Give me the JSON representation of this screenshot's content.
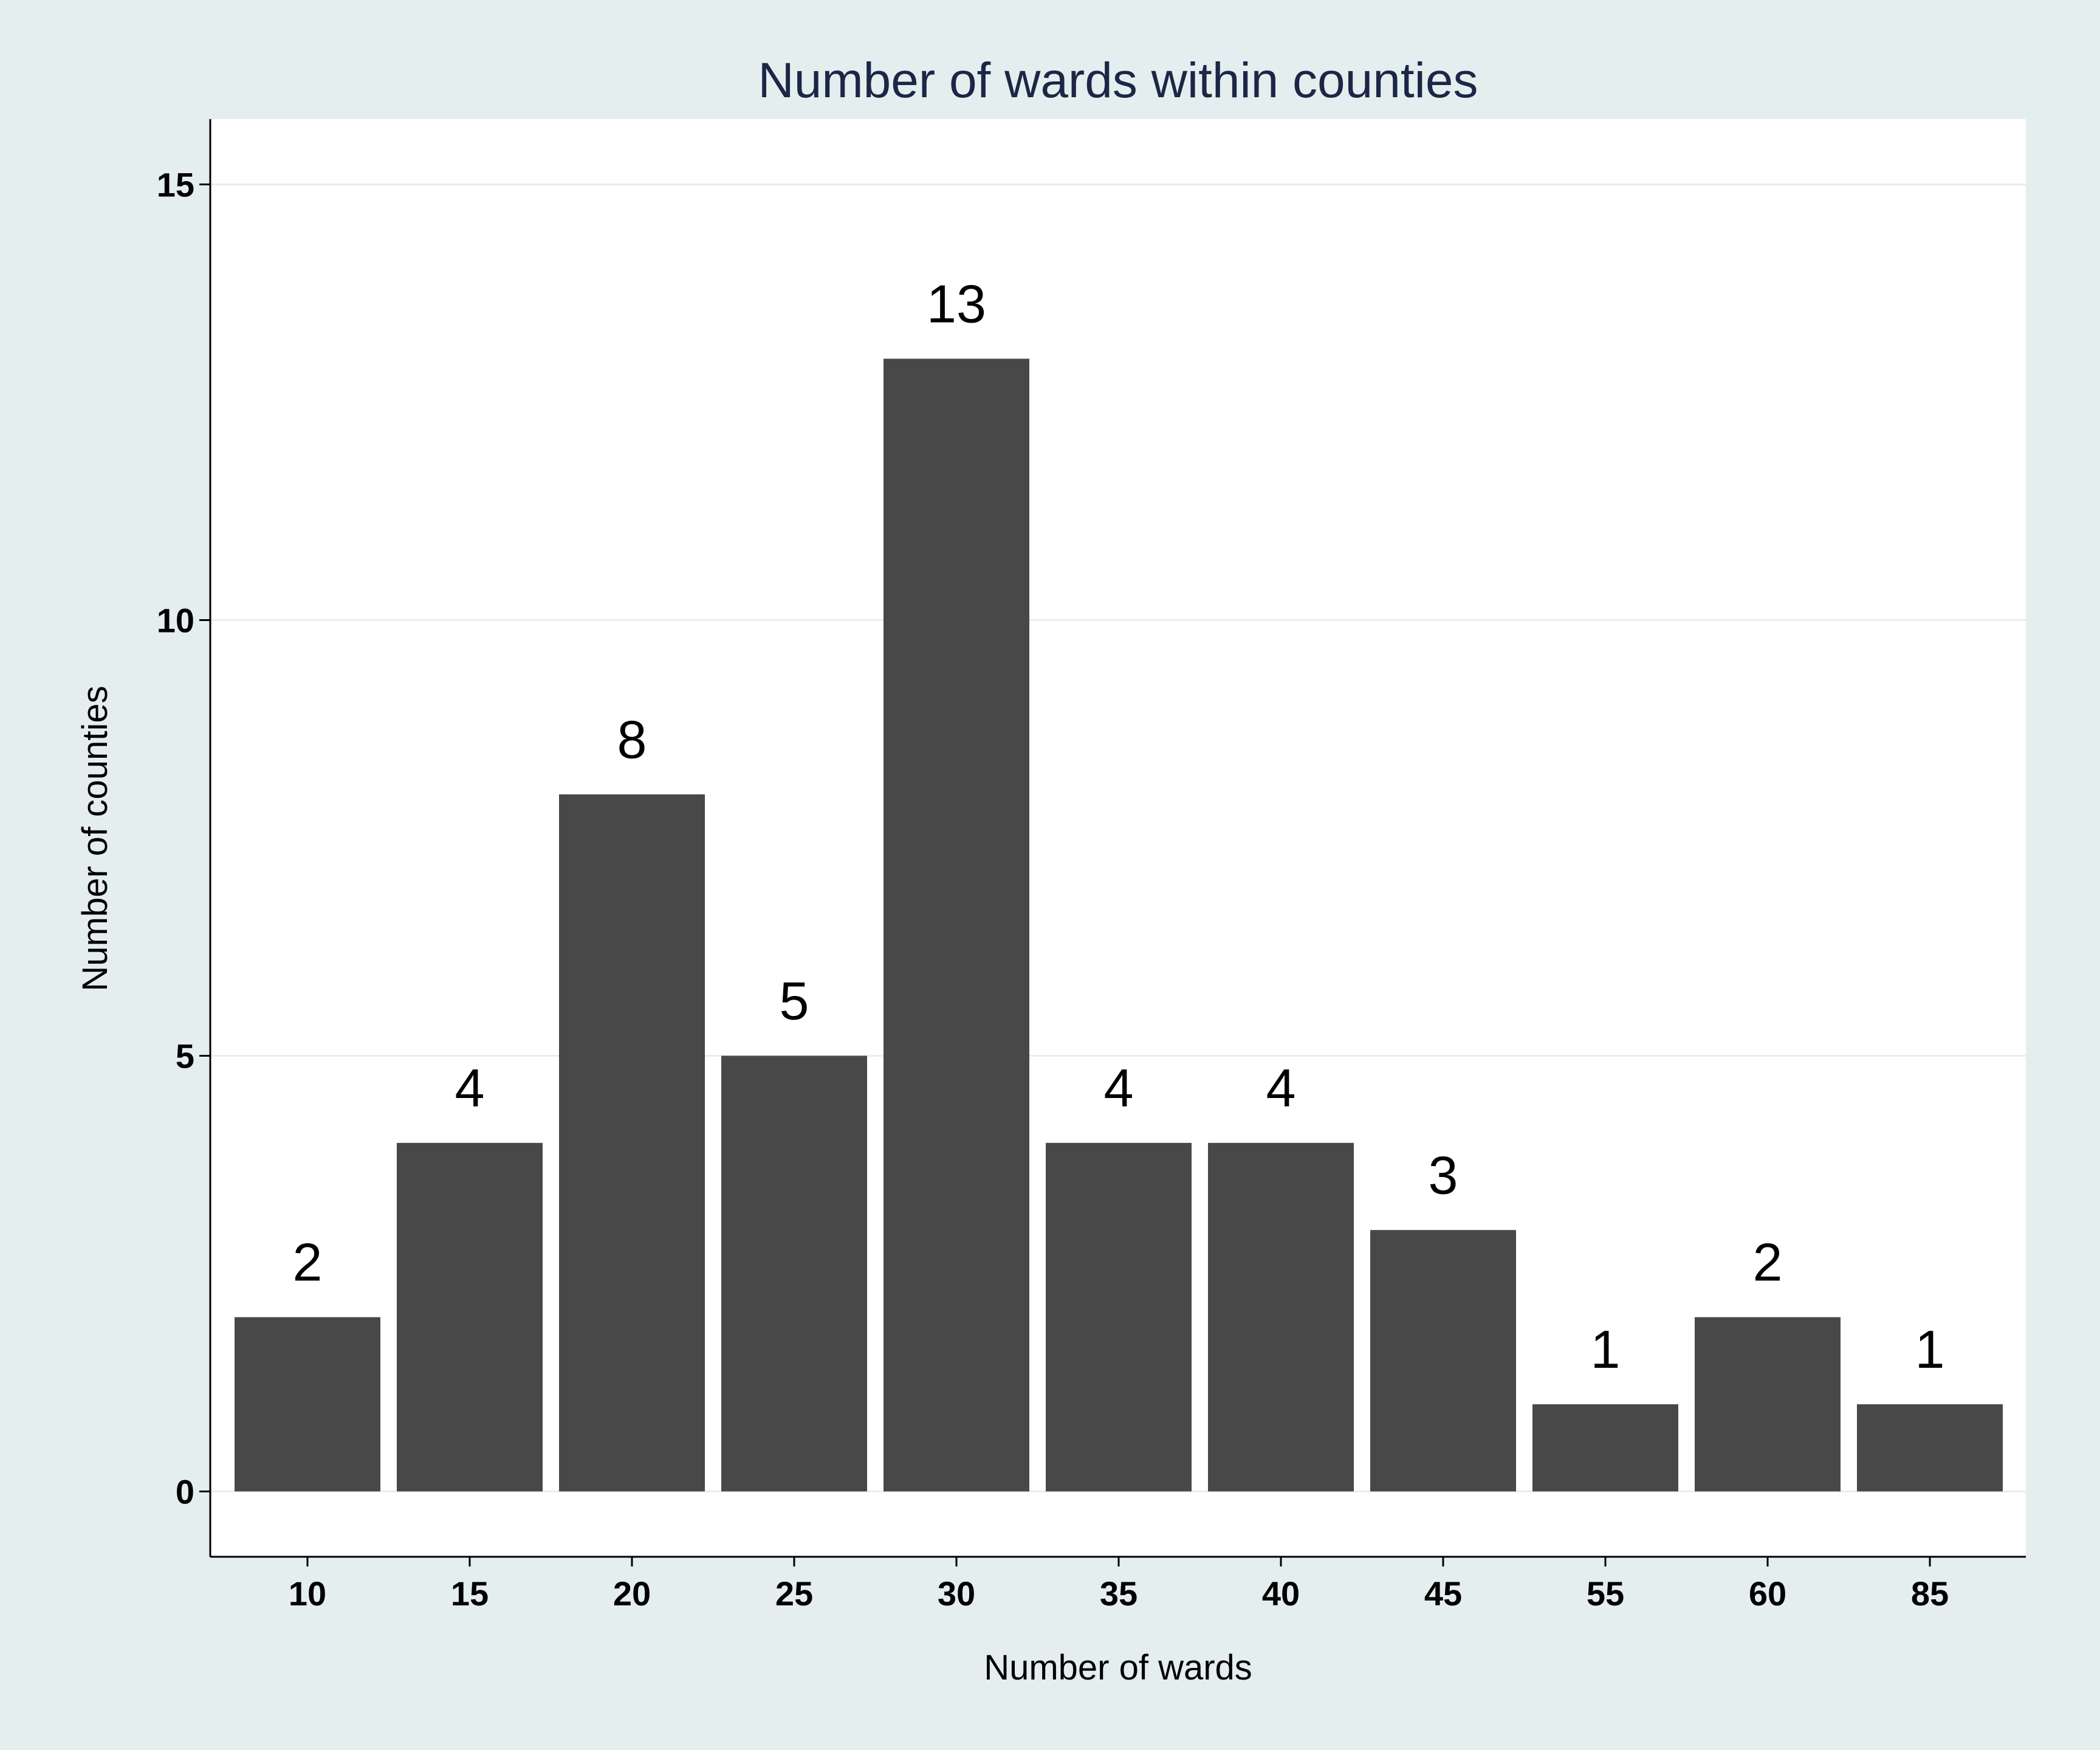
{
  "chart_data": {
    "type": "bar",
    "title": "Number of wards within counties",
    "xlabel": "Number of wards",
    "ylabel": "Number of counties",
    "categories": [
      "10",
      "15",
      "20",
      "25",
      "30",
      "35",
      "40",
      "45",
      "55",
      "60",
      "85"
    ],
    "values": [
      2,
      4,
      8,
      5,
      13,
      4,
      4,
      3,
      1,
      2,
      1
    ],
    "data_labels": [
      "2",
      "4",
      "8",
      "5",
      "13",
      "4",
      "4",
      "3",
      "1",
      "2",
      "1"
    ],
    "yticks": [
      0,
      5,
      10,
      15
    ],
    "ytick_labels": [
      "0",
      "5",
      "10",
      "15"
    ],
    "ylim": [
      -0.75,
      15.75
    ],
    "grid": true,
    "legend": "none",
    "colors": {
      "background": "#e4eeef",
      "plot_background": "#ffffff",
      "bar": "#484848",
      "grid": "#e8eeee",
      "title": "#1c2746"
    }
  }
}
